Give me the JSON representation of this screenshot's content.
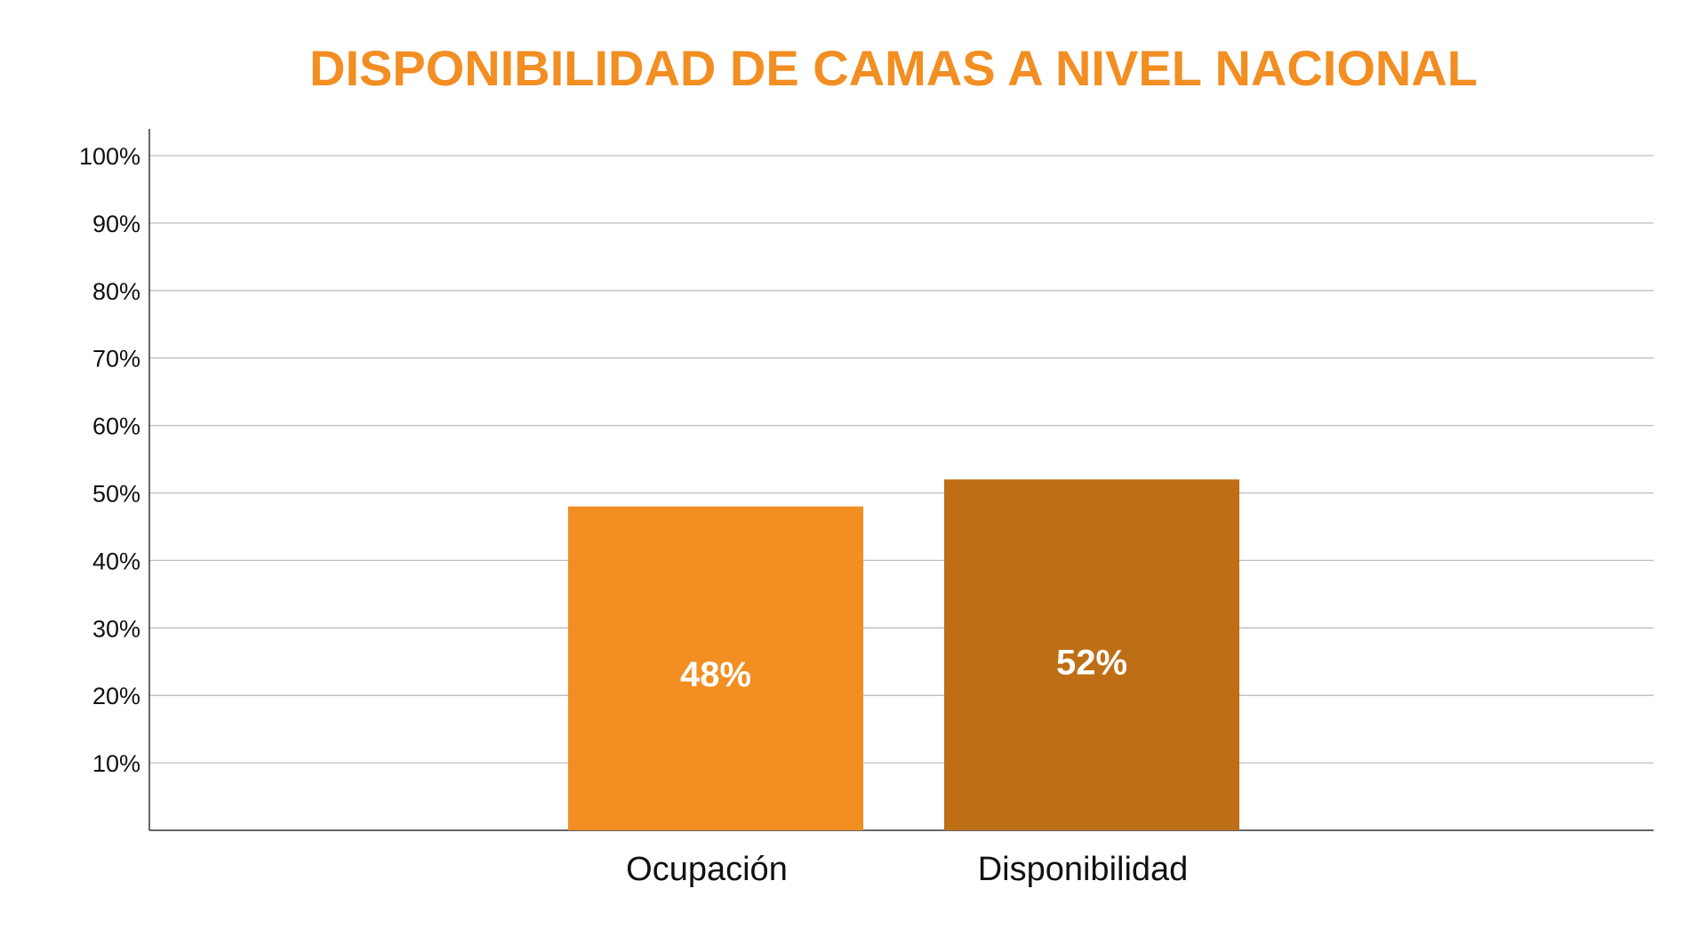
{
  "chart_data": {
    "type": "bar",
    "title": "DISPONIBILIDAD DE CAMAS A NIVEL NACIONAL",
    "categories": [
      "Ocupación",
      "Disponibilidad"
    ],
    "values": [
      48,
      52
    ],
    "value_labels": [
      "48%",
      "52%"
    ],
    "bar_colors": [
      "#F28E22",
      "#BE6E15"
    ],
    "title_color": "#F28E22",
    "ylim": [
      0,
      100
    ],
    "yticks": [
      10,
      20,
      30,
      40,
      50,
      60,
      70,
      80,
      90,
      100
    ],
    "ytick_labels": [
      "10%",
      "20%",
      "30%",
      "40%",
      "50%",
      "60%",
      "70%",
      "80%",
      "90%",
      "100%"
    ],
    "grid": true,
    "xlabel": "",
    "ylabel": ""
  }
}
